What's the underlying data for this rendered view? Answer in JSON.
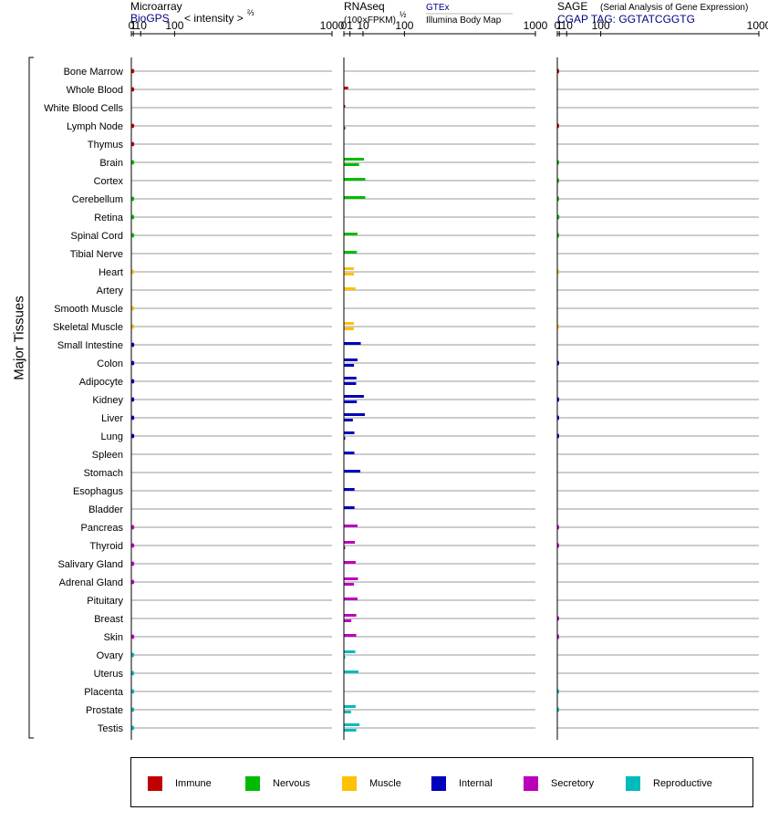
{
  "panel_titles": {
    "microarray": {
      "title": "Microarray",
      "source": "BioGPS",
      "note_main": "< intensity >",
      "note_exp": "⅔"
    },
    "rnaseq": {
      "title": "RNAseq",
      "units": "(100×FPKM)",
      "units_exp": "½",
      "source1": "GTEx",
      "source2": "Illumina Body Map"
    },
    "sage": {
      "title": "SAGE",
      "subtitle": "(Serial Analysis of Gene Expression)",
      "tag": "CGAP TAG: GGTATCGGTG"
    }
  },
  "group_label": "Major Tissues",
  "legend": [
    {
      "name": "Immune",
      "color": "#c00000"
    },
    {
      "name": "Nervous",
      "color": "#00bb00"
    },
    {
      "name": "Muscle",
      "color": "#ffc000"
    },
    {
      "name": "Internal",
      "color": "#0000bb"
    },
    {
      "name": "Secretory",
      "color": "#bb00bb"
    },
    {
      "name": "Reproductive",
      "color": "#00bbbb"
    }
  ],
  "chart_data": {
    "type": "bar",
    "orientation": "horizontal",
    "x_scale": "power (2/3 for microarray and SAGE, 1/2 for RNAseq)",
    "xlim": [
      0,
      1000
    ],
    "tick_labels": [
      "0",
      "1",
      "10",
      "100",
      "1000"
    ],
    "grid": true,
    "legend_placement": "bottom",
    "tissues": [
      {
        "name": "Bone Marrow",
        "group": "Immune",
        "microarray": 1.8,
        "rnaseq": [],
        "sage": 0.02
      },
      {
        "name": "Whole Blood",
        "group": "Immune",
        "microarray": 1.8,
        "rnaseq": [
          0.5
        ],
        "sage": 0
      },
      {
        "name": "White Blood Cells",
        "group": "Immune",
        "microarray": 0,
        "rnaseq": [
          0.0001
        ],
        "sage": 0
      },
      {
        "name": "Lymph Node",
        "group": "Immune",
        "microarray": 1.8,
        "rnaseq": [
          0,
          0.0001
        ],
        "sage": 0.02
      },
      {
        "name": "Thymus",
        "group": "Immune",
        "microarray": 1.8,
        "rnaseq": [],
        "sage": 0
      },
      {
        "name": "Brain",
        "group": "Nervous",
        "microarray": 1.8,
        "rnaseq": [
          11,
          6.3
        ],
        "sage": 0.02
      },
      {
        "name": "Cortex",
        "group": "Nervous",
        "microarray": 0,
        "rnaseq": [
          12.5
        ],
        "sage": 0.01
      },
      {
        "name": "Cerebellum",
        "group": "Nervous",
        "microarray": 1.8,
        "rnaseq": [
          12.5
        ],
        "sage": 0.01
      },
      {
        "name": "Retina",
        "group": "Nervous",
        "microarray": 1.8,
        "rnaseq": [],
        "sage": 1.1
      },
      {
        "name": "Spinal Cord",
        "group": "Nervous",
        "microarray": 1.8,
        "rnaseq": [
          5
        ],
        "sage": 0.02
      },
      {
        "name": "Tibial Nerve",
        "group": "Nervous",
        "microarray": 0,
        "rnaseq": [
          4.6
        ],
        "sage": 0
      },
      {
        "name": "Heart",
        "group": "Muscle",
        "microarray": 1.7,
        "rnaseq": [
          2.7,
          2.7
        ],
        "sage": 0.01
      },
      {
        "name": "Artery",
        "group": "Muscle",
        "microarray": 0,
        "rnaseq": [
          3.7
        ],
        "sage": 0
      },
      {
        "name": "Smooth Muscle",
        "group": "Muscle",
        "microarray": 1.8,
        "rnaseq": [],
        "sage": 0
      },
      {
        "name": "Skeletal Muscle",
        "group": "Muscle",
        "microarray": 1.8,
        "rnaseq": [
          2.7,
          2.7
        ],
        "sage": 0.01
      },
      {
        "name": "Small Intestine",
        "group": "Internal",
        "microarray": 1.8,
        "rnaseq": [
          7.8
        ],
        "sage": 0
      },
      {
        "name": "Colon",
        "group": "Internal",
        "microarray": 1.8,
        "rnaseq": [
          5.1,
          2.8
        ],
        "sage": 0.02
      },
      {
        "name": "Adipocyte",
        "group": "Internal",
        "microarray": 1.8,
        "rnaseq": [
          4.3,
          4.1
        ],
        "sage": 0
      },
      {
        "name": "Kidney",
        "group": "Internal",
        "microarray": 1.8,
        "rnaseq": [
          10.9,
          4.6
        ],
        "sage": 0.02
      },
      {
        "name": "Liver",
        "group": "Internal",
        "microarray": 1.8,
        "rnaseq": [
          12,
          2.2
        ],
        "sage": 0.02
      },
      {
        "name": "Lung",
        "group": "Internal",
        "microarray": 1.8,
        "rnaseq": [
          3,
          0.0001
        ],
        "sage": 0.02
      },
      {
        "name": "Spleen",
        "group": "Internal",
        "microarray": 0,
        "rnaseq": [
          3
        ],
        "sage": 0
      },
      {
        "name": "Stomach",
        "group": "Internal",
        "microarray": 0,
        "rnaseq": [
          7.4
        ],
        "sage": 0
      },
      {
        "name": "Esophagus",
        "group": "Internal",
        "microarray": 0,
        "rnaseq": [
          3.1
        ],
        "sage": 0
      },
      {
        "name": "Bladder",
        "group": "Internal",
        "microarray": 0,
        "rnaseq": [
          3.1
        ],
        "sage": 0
      },
      {
        "name": "Pancreas",
        "group": "Secretory",
        "microarray": 1.8,
        "rnaseq": [
          5.1
        ],
        "sage": 0.02
      },
      {
        "name": "Thyroid",
        "group": "Secretory",
        "microarray": 1.8,
        "rnaseq": [
          3.3,
          0.0001
        ],
        "sage": 0.02
      },
      {
        "name": "Salivary Gland",
        "group": "Secretory",
        "microarray": 1.8,
        "rnaseq": [
          3.8
        ],
        "sage": 0
      },
      {
        "name": "Adrenal Gland",
        "group": "Secretory",
        "microarray": 1.8,
        "rnaseq": [
          5.4,
          2.8
        ],
        "sage": 0
      },
      {
        "name": "Pituitary",
        "group": "Secretory",
        "microarray": 0,
        "rnaseq": [
          5.1
        ],
        "sage": 0
      },
      {
        "name": "Breast",
        "group": "Secretory",
        "microarray": 0,
        "rnaseq": [
          4.2,
          1.5
        ],
        "sage": 0.02
      },
      {
        "name": "Skin",
        "group": "Secretory",
        "microarray": 1.8,
        "rnaseq": [
          4.2
        ],
        "sage": 0.2
      },
      {
        "name": "Ovary",
        "group": "Reproductive",
        "microarray": 1.8,
        "rnaseq": [
          3.6,
          0.0001
        ],
        "sage": 0
      },
      {
        "name": "Uterus",
        "group": "Reproductive",
        "microarray": 1.8,
        "rnaseq": [
          5.8
        ],
        "sage": 0
      },
      {
        "name": "Placenta",
        "group": "Reproductive",
        "microarray": 1.8,
        "rnaseq": [],
        "sage": 0.02
      },
      {
        "name": "Prostate",
        "group": "Reproductive",
        "microarray": 1.8,
        "rnaseq": [
          3.8,
          1.4
        ],
        "sage": 0.02
      },
      {
        "name": "Testis",
        "group": "Reproductive",
        "microarray": 1.8,
        "rnaseq": [
          6.7,
          4.2
        ],
        "sage": 0
      }
    ]
  }
}
